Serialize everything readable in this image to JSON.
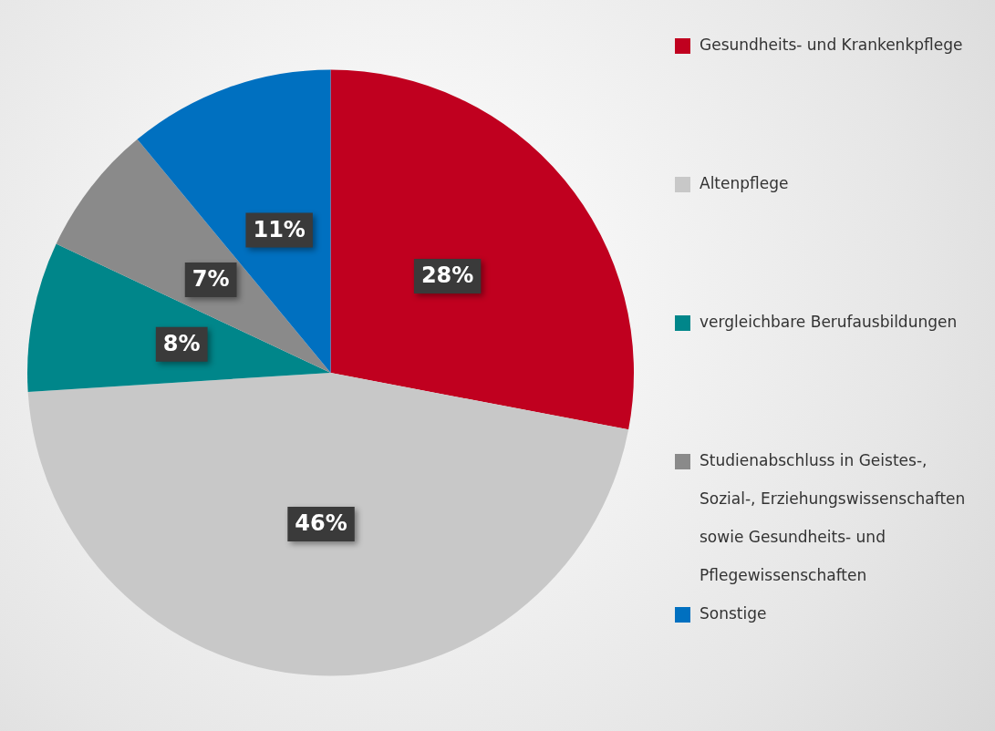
{
  "chart_data": {
    "type": "pie",
    "categories": [
      "Gesundheits- und Krankenkpflege",
      "Altenpflege",
      "vergleichbare Berufausbildungen",
      "Studienabschluss in Geistes-, Sozial-, Erziehungswissenschaften sowie Gesundheits- und Pflegewissenschaften",
      "Sonstige"
    ],
    "values": [
      28,
      46,
      8,
      7,
      11
    ],
    "colors": [
      "#c0001f",
      "#c8c8c8",
      "#00868a",
      "#8a8a8a",
      "#0070c0"
    ],
    "value_labels": [
      "28%",
      "46%",
      "8%",
      "7%",
      "11%"
    ],
    "legend": "right"
  }
}
